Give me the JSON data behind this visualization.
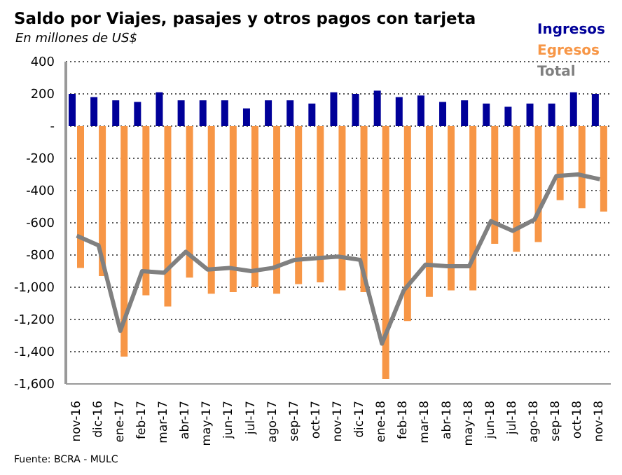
{
  "chart_data": {
    "type": "bar",
    "title": "Saldo por Viajes, pasajes y otros pagos con tarjeta",
    "subtitle": "En millones de US$",
    "annotations": [
      "Fuente: BCRA - MULC"
    ],
    "categories": [
      "nov-16",
      "dic-16",
      "ene-17",
      "feb-17",
      "mar-17",
      "abr-17",
      "may-17",
      "jun-17",
      "jul-17",
      "ago-17",
      "sep-17",
      "oct-17",
      "nov-17",
      "dic-17",
      "ene-18",
      "feb-18",
      "mar-18",
      "abr-18",
      "may-18",
      "jun-18",
      "jul-18",
      "ago-18",
      "sep-18",
      "oct-18",
      "nov-18"
    ],
    "series": [
      {
        "name": "Ingresos",
        "color": "#000099",
        "values": [
          200,
          180,
          160,
          150,
          210,
          160,
          160,
          160,
          110,
          160,
          160,
          140,
          210,
          200,
          220,
          180,
          190,
          150,
          160,
          140,
          120,
          140,
          140,
          210,
          200
        ]
      },
      {
        "name": "Egresos",
        "color": "#f79646",
        "values": [
          -880,
          -930,
          -1430,
          -1050,
          -1120,
          -940,
          -1040,
          -1030,
          -1000,
          -1040,
          -980,
          -970,
          -1020,
          -1030,
          -1570,
          -1210,
          -1060,
          -1020,
          -1020,
          -730,
          -780,
          -720,
          -460,
          -510,
          -530
        ]
      },
      {
        "name": "Total",
        "type": "line",
        "color": "#808080",
        "values": [
          -680,
          -740,
          -1270,
          -900,
          -910,
          -780,
          -890,
          -880,
          -900,
          -880,
          -830,
          -820,
          -810,
          -830,
          -1350,
          -1020,
          -860,
          -870,
          -870,
          -590,
          -650,
          -580,
          -310,
          -300,
          -330
        ]
      }
    ],
    "ylim": [
      -1600,
      400
    ],
    "yticks": [
      400,
      200,
      {
        "value": 0,
        "label": "-"
      },
      -200,
      -400,
      -600,
      -800,
      {
        "value": -1000,
        "label": "-1,000"
      },
      {
        "value": -1200,
        "label": "-1,200"
      },
      {
        "value": -1400,
        "label": "-1,400"
      },
      {
        "value": -1600,
        "label": "-1,600"
      }
    ],
    "grid": "y",
    "legend": "top right",
    "marker": "none",
    "line_style": "solid"
  }
}
